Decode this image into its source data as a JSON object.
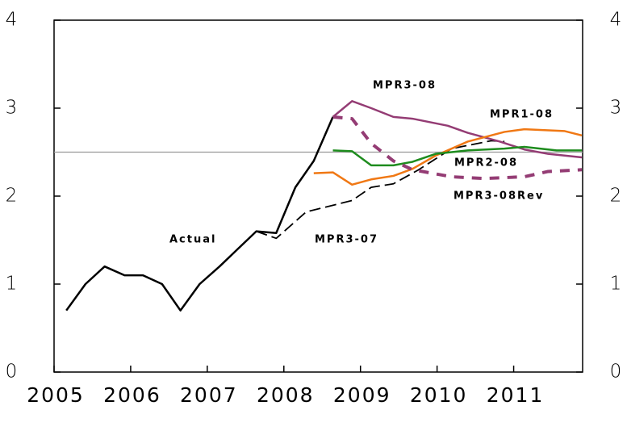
{
  "chart_data": {
    "type": "line",
    "xlim": [
      2005,
      2011.9
    ],
    "xticks": [
      2005,
      2006,
      2007,
      2008,
      2009,
      2010,
      2011
    ],
    "ylim": [
      0,
      4
    ],
    "yticks": [
      0,
      1,
      2,
      3,
      4
    ],
    "y2lim": [
      0,
      4
    ],
    "y2ticks": [
      0,
      1,
      2,
      3,
      4
    ],
    "reference_line": 2.5,
    "series": [
      {
        "name": "Actual",
        "color": "#000000",
        "style": "solid",
        "x": [
          2005.16,
          2005.41,
          2005.66,
          2005.92,
          2006.16,
          2006.41,
          2006.65,
          2006.9,
          2007.16,
          2007.4,
          2007.64,
          2007.9,
          2008.15,
          2008.39,
          2008.64
        ],
        "values": [
          0.7,
          1.0,
          1.2,
          1.1,
          1.1,
          1.0,
          0.7,
          1.0,
          1.2,
          1.4,
          1.6,
          1.58,
          2.1,
          2.4,
          2.9
        ]
      },
      {
        "name": "MPR3-07",
        "color": "#000000",
        "style": "dashed",
        "x": [
          2007.64,
          2007.9,
          2008.29,
          2008.89,
          2009.14,
          2009.43,
          2009.76,
          2010.19,
          2010.71,
          2010.88
        ],
        "values": [
          1.6,
          1.52,
          1.82,
          1.95,
          2.1,
          2.14,
          2.3,
          2.54,
          2.63,
          2.62
        ]
      },
      {
        "name": "MPR3-08",
        "color": "#943c74",
        "style": "solid",
        "x": [
          2008.64,
          2008.89,
          2009.14,
          2009.43,
          2009.68,
          2010.14,
          2010.4,
          2010.82,
          2011.14,
          2011.45,
          2011.89
        ],
        "values": [
          2.9,
          3.08,
          3.0,
          2.9,
          2.88,
          2.8,
          2.72,
          2.62,
          2.53,
          2.48,
          2.44
        ]
      },
      {
        "name": "MPR1-08",
        "color": "#f07814",
        "style": "solid",
        "x": [
          2008.39,
          2008.64,
          2008.89,
          2009.14,
          2009.43,
          2009.68,
          2009.98,
          2010.4,
          2010.88,
          2011.14,
          2011.66,
          2011.89
        ],
        "values": [
          2.26,
          2.27,
          2.13,
          2.19,
          2.23,
          2.31,
          2.46,
          2.62,
          2.73,
          2.76,
          2.74,
          2.69
        ]
      },
      {
        "name": "MPR2-08",
        "color": "#1e8c1e",
        "style": "solid",
        "x": [
          2008.64,
          2008.89,
          2009.14,
          2009.43,
          2009.68,
          2009.98,
          2010.4,
          2010.88,
          2011.14,
          2011.56,
          2011.89
        ],
        "values": [
          2.52,
          2.51,
          2.35,
          2.35,
          2.39,
          2.48,
          2.52,
          2.54,
          2.56,
          2.52,
          2.52
        ]
      },
      {
        "name": "MPR3-08Rev",
        "color": "#943c74",
        "style": "thickdash",
        "x": [
          2008.64,
          2008.89,
          2009.14,
          2009.43,
          2009.68,
          2010.19,
          2010.61,
          2011.14,
          2011.45,
          2011.89
        ],
        "values": [
          2.9,
          2.88,
          2.6,
          2.4,
          2.3,
          2.22,
          2.2,
          2.22,
          2.28,
          2.3
        ]
      }
    ]
  }
}
